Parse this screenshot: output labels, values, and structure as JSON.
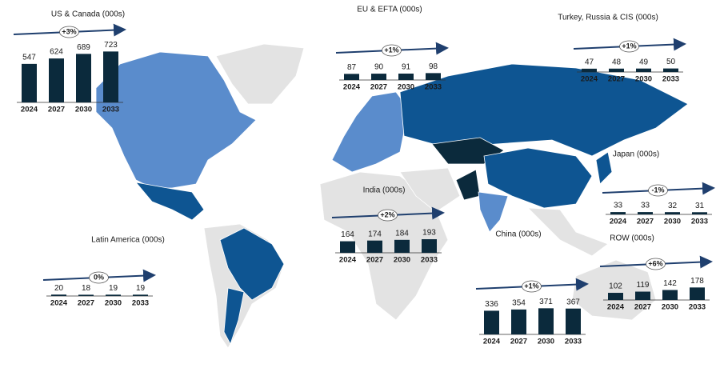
{
  "chart_data": [
    {
      "type": "bar",
      "title": "US & Canada (000s)",
      "annotation": "+3%",
      "categories": [
        "2024",
        "2027",
        "2030",
        "2033"
      ],
      "values": [
        547,
        624,
        689,
        723
      ],
      "color": "#0b2a3c"
    },
    {
      "type": "bar",
      "title": "EU & EFTA (000s)",
      "annotation": "+1%",
      "categories": [
        "2024",
        "2027",
        "2030",
        "2033"
      ],
      "values": [
        87,
        90,
        91,
        98
      ],
      "color": "#0b2a3c"
    },
    {
      "type": "bar",
      "title": "Turkey, Russia & CIS (000s)",
      "annotation": "+1%",
      "categories": [
        "2024",
        "2027",
        "2030",
        "2033"
      ],
      "values": [
        47,
        48,
        49,
        50
      ],
      "color": "#0b2a3c"
    },
    {
      "type": "bar",
      "title": "Japan (000s)",
      "annotation": "-1%",
      "categories": [
        "2024",
        "2027",
        "2030",
        "2033"
      ],
      "values": [
        33,
        33,
        32,
        31
      ],
      "color": "#0b2a3c"
    },
    {
      "type": "bar",
      "title": "India (000s)",
      "annotation": "+2%",
      "categories": [
        "2024",
        "2027",
        "2030",
        "2033"
      ],
      "values": [
        164,
        174,
        184,
        193
      ],
      "color": "#0b2a3c"
    },
    {
      "type": "bar",
      "title": "Latin America (000s)",
      "annotation": "0%",
      "categories": [
        "2024",
        "2027",
        "2030",
        "2033"
      ],
      "values": [
        20,
        18,
        19,
        19
      ],
      "color": "#0b2a3c"
    },
    {
      "type": "bar",
      "title": "China (000s)",
      "annotation": "+1%",
      "categories": [
        "2024",
        "2027",
        "2030",
        "2033"
      ],
      "values": [
        336,
        354,
        371,
        367
      ],
      "color": "#0b2a3c"
    },
    {
      "type": "bar",
      "title": "ROW (000s)",
      "annotation": "+6%",
      "categories": [
        "2024",
        "2027",
        "2030",
        "2033"
      ],
      "values": [
        102,
        119,
        142,
        178
      ],
      "color": "#0b2a3c"
    }
  ]
}
